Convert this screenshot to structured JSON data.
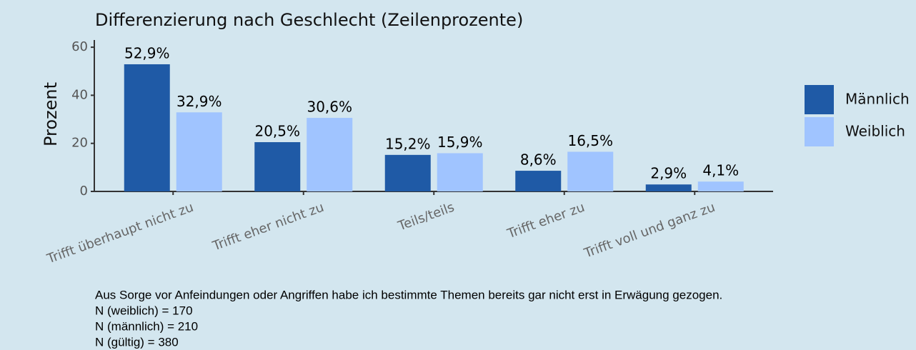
{
  "chart_data": {
    "type": "bar",
    "title": "Differenzierung nach Geschlecht (Zeilenprozente)",
    "y_label": "Prozent",
    "categories": [
      "Trifft überhaupt nicht zu",
      "Trifft eher nicht zu",
      "Teils/teils",
      "Trifft eher zu",
      "Trifft voll und ganz zu"
    ],
    "series": [
      {
        "name": "Männlich",
        "color": "#1f5aa6",
        "values": [
          52.9,
          20.5,
          15.2,
          8.6,
          2.9
        ],
        "value_labels": [
          "52,9%",
          "20,5%",
          "15,2%",
          "8,6%",
          "2,9%"
        ]
      },
      {
        "name": "Weiblich",
        "color": "#a0c4ff",
        "values": [
          32.9,
          30.6,
          15.9,
          16.5,
          4.1
        ],
        "value_labels": [
          "32,9%",
          "30,6%",
          "15,9%",
          "16,5%",
          "4,1%"
        ]
      }
    ],
    "ylim": [
      0,
      63
    ],
    "yticks": [
      0,
      20,
      40,
      60
    ],
    "legend": "right",
    "caption": [
      "Aus Sorge vor Anfeindungen oder Angriffen habe ich bestimmte Themen bereits gar nicht erst in Erwägung gezogen.",
      "N (weiblich) = 170",
      "N (männlich) = 210",
      "N (gültig) = 380"
    ]
  }
}
